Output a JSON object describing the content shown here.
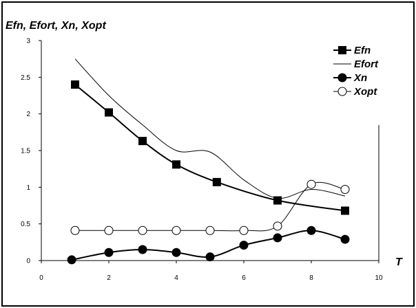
{
  "chart_data": {
    "type": "line",
    "title": "",
    "ylabel": "Efn, Efort, Xn, Xopt",
    "xlabel": "T",
    "xlim": [
      0,
      10
    ],
    "ylim": [
      0,
      3
    ],
    "xticks": [
      0,
      2,
      4,
      6,
      8,
      10
    ],
    "yticks": [
      0,
      0.5,
      1,
      1.5,
      2,
      2.5,
      3
    ],
    "grid": false,
    "legend_position": "top-right",
    "series": [
      {
        "name": "Efn",
        "marker": "filled-square",
        "color": "#000000",
        "line": "thick-smooth",
        "x": [
          1,
          2,
          3,
          4,
          5.2,
          7,
          9
        ],
        "y": [
          2.4,
          2.02,
          1.63,
          1.31,
          1.07,
          0.82,
          0.68
        ]
      },
      {
        "name": "Efort",
        "marker": "none",
        "color": "#000000",
        "line": "thin-smooth",
        "x": [
          1,
          2,
          3,
          4,
          5,
          6,
          7,
          8,
          9
        ],
        "y": [
          2.75,
          2.25,
          1.85,
          1.5,
          1.48,
          1.1,
          0.85,
          0.97,
          0.88
        ]
      },
      {
        "name": "Xn",
        "marker": "filled-circle",
        "color": "#000000",
        "line": "thick-smooth",
        "x": [
          0.9,
          2,
          3,
          4,
          5,
          6,
          7,
          8,
          9
        ],
        "y": [
          0.01,
          0.11,
          0.15,
          0.11,
          0.05,
          0.21,
          0.31,
          0.41,
          0.29
        ]
      },
      {
        "name": "Xopt",
        "marker": "open-circle",
        "color": "#000000",
        "line": "thin-smooth",
        "x": [
          1,
          2,
          3,
          4,
          5,
          6,
          7,
          8,
          9
        ],
        "y": [
          0.41,
          0.41,
          0.41,
          0.41,
          0.41,
          0.41,
          0.47,
          1.04,
          0.97
        ]
      }
    ]
  }
}
